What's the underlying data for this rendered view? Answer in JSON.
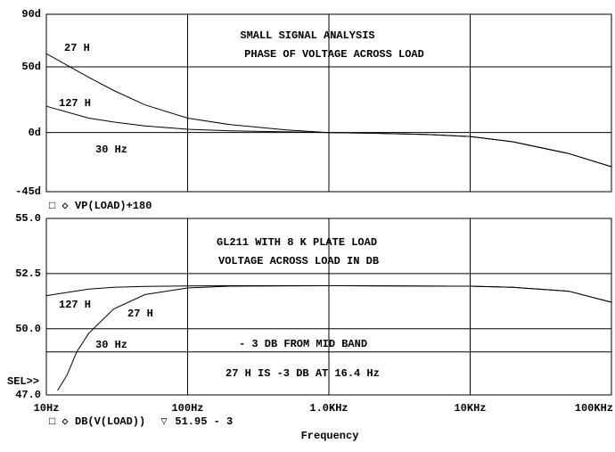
{
  "chart_data": [
    {
      "type": "line",
      "xscale": "log",
      "grid": true,
      "trace_expression": "VP(LOAD)+180",
      "annotations": [
        "SMALL SIGNAL ANALYSIS",
        "PHASE OF VOLTAGE ACROSS LOAD",
        "30 Hz"
      ],
      "ylim": [
        -45,
        90
      ],
      "yticks": [
        {
          "value": 90,
          "label": "90d"
        },
        {
          "value": 50,
          "label": "50d"
        },
        {
          "value": 0,
          "label": "0d"
        },
        {
          "value": -45,
          "label": "-45d"
        }
      ],
      "series": [
        {
          "name": "27 H",
          "color": "#000000",
          "x": [
            10,
            20,
            30,
            50,
            100,
            200,
            500,
            1000,
            2000,
            5000,
            10000,
            20000,
            50000,
            100000
          ],
          "values": [
            60,
            42,
            32,
            21,
            11,
            6,
            2,
            0,
            -0.5,
            -1.5,
            -3,
            -7,
            -16,
            -26
          ]
        },
        {
          "name": "127 H",
          "color": "#000000",
          "x": [
            10,
            20,
            30,
            50,
            100,
            200,
            500,
            1000,
            2000,
            5000,
            10000,
            20000,
            50000,
            100000
          ],
          "values": [
            20,
            11,
            8,
            5,
            2.5,
            1.3,
            0.5,
            0,
            -0.5,
            -1.5,
            -3,
            -7,
            -16,
            -26
          ]
        }
      ]
    },
    {
      "type": "line",
      "xscale": "log",
      "grid": true,
      "trace_expression": "DB(V(LOAD))",
      "annotations": [
        "GL211 WITH 8 K PLATE LOAD",
        "VOLTAGE ACROSS LOAD IN DB",
        "30 Hz",
        "- 3 DB FROM MID BAND",
        "27 H IS -3 DB AT 16.4 Hz",
        "SEL>>"
      ],
      "x_label": "Frequency",
      "xlim": [
        10,
        100000
      ],
      "xticks": [
        {
          "value": 10,
          "label": "10Hz"
        },
        {
          "value": 100,
          "label": "100Hz"
        },
        {
          "value": 1000,
          "label": "1.0KHz"
        },
        {
          "value": 10000,
          "label": "10KHz"
        },
        {
          "value": 100000,
          "label": "100KHz"
        }
      ],
      "ylim": [
        47,
        55
      ],
      "yticks": [
        {
          "value": 55,
          "label": "55.0"
        },
        {
          "value": 52.5,
          "label": "52.5"
        },
        {
          "value": 50,
          "label": "50.0"
        },
        {
          "value": 47,
          "label": "47.0"
        }
      ],
      "series": [
        {
          "name": "27 H",
          "color": "#000000",
          "x": [
            12,
            14,
            16.4,
            20,
            30,
            50,
            100,
            200,
            1000,
            10000,
            20000,
            50000,
            100000
          ],
          "values": [
            47.2,
            47.9,
            48.95,
            49.8,
            50.9,
            51.55,
            51.85,
            51.93,
            51.95,
            51.93,
            51.88,
            51.7,
            51.2
          ]
        },
        {
          "name": "127 H",
          "color": "#000000",
          "x": [
            10,
            20,
            30,
            50,
            100,
            200,
            1000,
            10000,
            20000,
            50000,
            100000
          ],
          "values": [
            51.5,
            51.8,
            51.88,
            51.92,
            51.94,
            51.95,
            51.95,
            51.93,
            51.88,
            51.7,
            51.2
          ]
        },
        {
          "name": "51.95 - 3",
          "color": "#000000",
          "x": [
            10,
            100000
          ],
          "values": [
            48.95,
            48.95
          ]
        }
      ]
    }
  ]
}
